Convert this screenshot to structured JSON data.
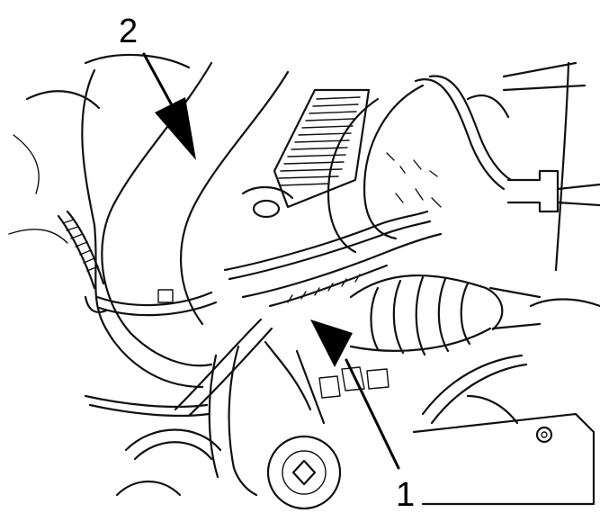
{
  "figure": {
    "callouts": [
      {
        "id": "callout-1",
        "label": "1"
      },
      {
        "id": "callout-2",
        "label": "2"
      }
    ],
    "line_color": "#111111",
    "background": "#ffffff"
  }
}
